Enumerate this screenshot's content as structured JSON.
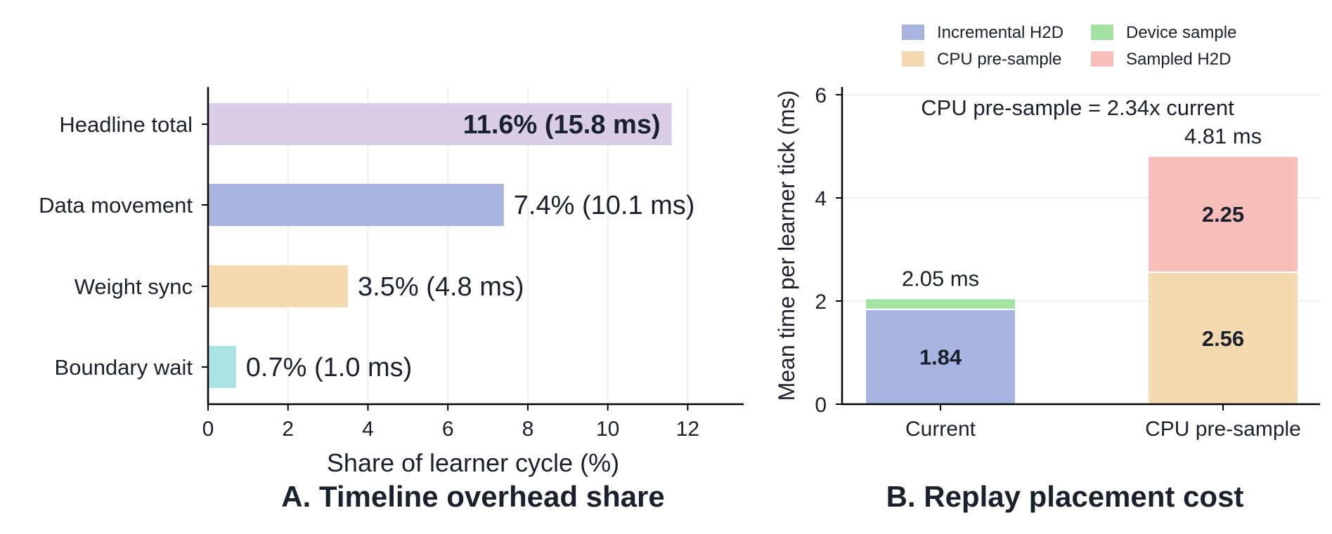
{
  "chart_data": [
    {
      "panel": "A",
      "type": "bar",
      "orientation": "horizontal",
      "title": "A. Timeline overhead share",
      "xlabel": "Share of learner cycle (%)",
      "ylabel": "",
      "xlim": [
        0,
        13.4
      ],
      "xticks": [
        0,
        2,
        4,
        6,
        8,
        10,
        12
      ],
      "grid": "vertical",
      "categories": [
        "Headline total",
        "Data movement",
        "Weight sync",
        "Boundary wait"
      ],
      "values": [
        11.6,
        7.4,
        3.5,
        0.7
      ],
      "colors": [
        "#dacde6",
        "#a7b4e0",
        "#f5dab1",
        "#a9e4e3"
      ],
      "labels": [
        "11.6%  (15.8 ms)",
        "7.4%  (10.1 ms)",
        "3.5%  (4.8 ms)",
        "0.7%  (1.0 ms)"
      ],
      "label_inside": [
        true,
        false,
        false,
        false
      ],
      "label_bold": [
        true,
        false,
        false,
        false
      ]
    },
    {
      "panel": "B",
      "type": "bar",
      "stacked": true,
      "title": "B. Replay placement cost",
      "xlabel": "",
      "ylabel": "Mean time per learner tick (ms)",
      "ylim": [
        0,
        6.15
      ],
      "yticks": [
        0,
        2,
        4,
        6
      ],
      "grid": "horizontal",
      "legend": "top",
      "categories": [
        "Current",
        "CPU pre-sample"
      ],
      "series": [
        {
          "name": "Incremental H2D",
          "color": "#a7b4e0",
          "values": [
            1.84,
            0
          ]
        },
        {
          "name": "Device sample",
          "color": "#a3e2a2",
          "values": [
            0.21,
            0
          ]
        },
        {
          "name": "CPU pre-sample",
          "color": "#f5dab1",
          "values": [
            0,
            2.56
          ]
        },
        {
          "name": "Sampled H2D",
          "color": "#f8bfba",
          "values": [
            0,
            2.25
          ]
        }
      ],
      "segment_labels": [
        {
          "category": 0,
          "series": 0,
          "text": "1.84"
        },
        {
          "category": 1,
          "series": 2,
          "text": "2.56"
        },
        {
          "category": 1,
          "series": 3,
          "text": "2.25"
        }
      ],
      "totals": [
        2.05,
        4.81
      ],
      "total_labels": [
        "2.05 ms",
        "4.81 ms"
      ],
      "annotation": "CPU pre-sample = 2.34x current"
    }
  ]
}
